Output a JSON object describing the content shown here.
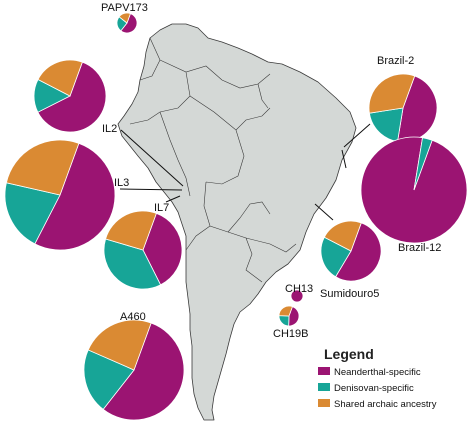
{
  "colors": {
    "neanderthal": "#9b1472",
    "denisovan": "#17a597",
    "shared": "#da8a33",
    "land": "#d4d8d6",
    "border": "#3a3a3a"
  },
  "legend": {
    "title": "Legend",
    "items": [
      {
        "label": "Neanderthal-specific",
        "color": "#9b1472"
      },
      {
        "label": "Denisovan-specific",
        "color": "#17a597"
      },
      {
        "label": "Shared archaic ancestry",
        "color": "#da8a33"
      }
    ]
  },
  "samples": [
    {
      "name": "PAPV173",
      "fractions": [
        0.55,
        0.25,
        0.2
      ]
    },
    {
      "name": "",
      "fractions": [
        0.62,
        0.15,
        0.23
      ]
    },
    {
      "name": "IL2",
      "fractions": [
        0.0,
        0.0,
        0.0
      ]
    },
    {
      "name": "IL3",
      "fractions": [
        0.52,
        0.21,
        0.27
      ]
    },
    {
      "name": "IL7",
      "fractions": [
        0.37,
        0.37,
        0.26
      ]
    },
    {
      "name": "A460",
      "fractions": [
        0.55,
        0.21,
        0.24
      ]
    },
    {
      "name": "Brazil-2",
      "fractions": [
        0.47,
        0.2,
        0.33
      ]
    },
    {
      "name": "Brazil-12",
      "fractions": [
        0.97,
        0.03,
        0.0
      ]
    },
    {
      "name": "Sumidouro5",
      "fractions": [
        0.53,
        0.24,
        0.23
      ]
    },
    {
      "name": "CH13",
      "fractions": [
        1.0,
        0.0,
        0.0
      ]
    },
    {
      "name": "CH19B",
      "fractions": [
        0.45,
        0.25,
        0.3
      ]
    }
  ]
}
